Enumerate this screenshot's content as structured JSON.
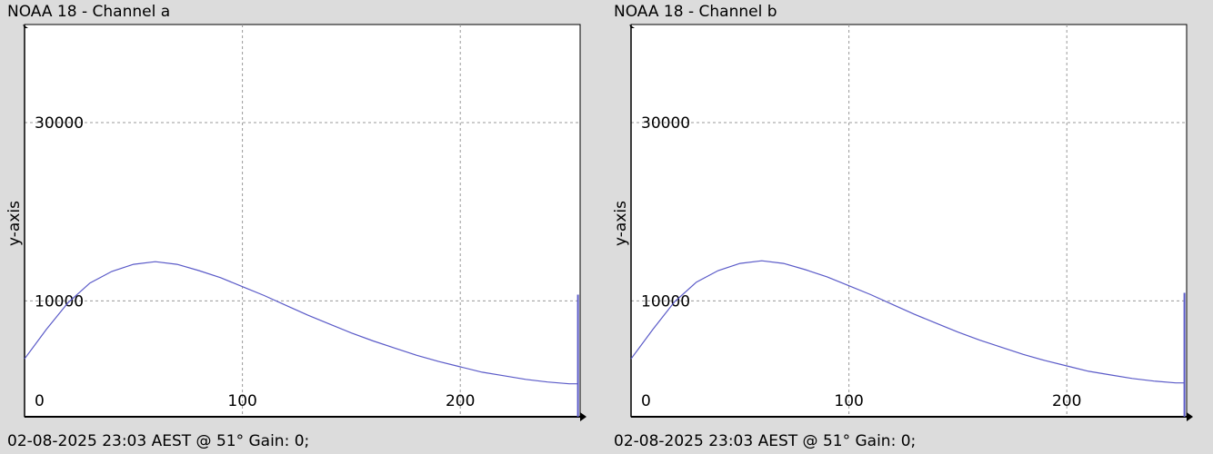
{
  "chart_data": [
    {
      "type": "line",
      "title": "NOAA 18 - Channel a",
      "ylabel": "y-axis",
      "xlabel": "",
      "footer": "02-08-2025 23:03 AEST @ 51° Gain: 0;",
      "xlim": [
        0,
        255
      ],
      "ylim": [
        -3000,
        41000
      ],
      "xticks": [
        "0",
        "100",
        "200"
      ],
      "yticks": [
        "10000",
        "30000"
      ],
      "grid": true,
      "series": [
        {
          "color": "#5a5ac8",
          "x": [
            0,
            10,
            20,
            30,
            40,
            50,
            60,
            70,
            80,
            90,
            100,
            110,
            120,
            130,
            140,
            150,
            160,
            170,
            180,
            190,
            200,
            210,
            220,
            230,
            240,
            250,
            254
          ],
          "y": [
            3500,
            6800,
            9800,
            12000,
            13300,
            14100,
            14400,
            14100,
            13400,
            12600,
            11600,
            10600,
            9500,
            8400,
            7400,
            6400,
            5500,
            4700,
            3900,
            3200,
            2600,
            2000,
            1600,
            1200,
            900,
            700,
            700
          ]
        }
      ],
      "spike": {
        "x": 254,
        "y": 10700
      }
    },
    {
      "type": "line",
      "title": "NOAA 18 - Channel b",
      "ylabel": "y-axis",
      "xlabel": "",
      "footer": "02-08-2025 23:03 AEST @ 51° Gain: 0;",
      "xlim": [
        0,
        255
      ],
      "ylim": [
        -3000,
        41000
      ],
      "xticks": [
        "0",
        "100",
        "200"
      ],
      "yticks": [
        "10000",
        "30000"
      ],
      "grid": true,
      "series": [
        {
          "color": "#5a5ac8",
          "x": [
            0,
            10,
            20,
            30,
            40,
            50,
            60,
            70,
            80,
            90,
            100,
            110,
            120,
            130,
            140,
            150,
            160,
            170,
            180,
            190,
            200,
            210,
            220,
            230,
            240,
            250,
            254
          ],
          "y": [
            3500,
            6800,
            9900,
            12100,
            13400,
            14200,
            14500,
            14200,
            13500,
            12700,
            11700,
            10700,
            9600,
            8500,
            7500,
            6500,
            5600,
            4800,
            4000,
            3300,
            2700,
            2100,
            1700,
            1300,
            1000,
            800,
            800
          ]
        }
      ],
      "spike": {
        "x": 254,
        "y": 10900
      }
    }
  ]
}
